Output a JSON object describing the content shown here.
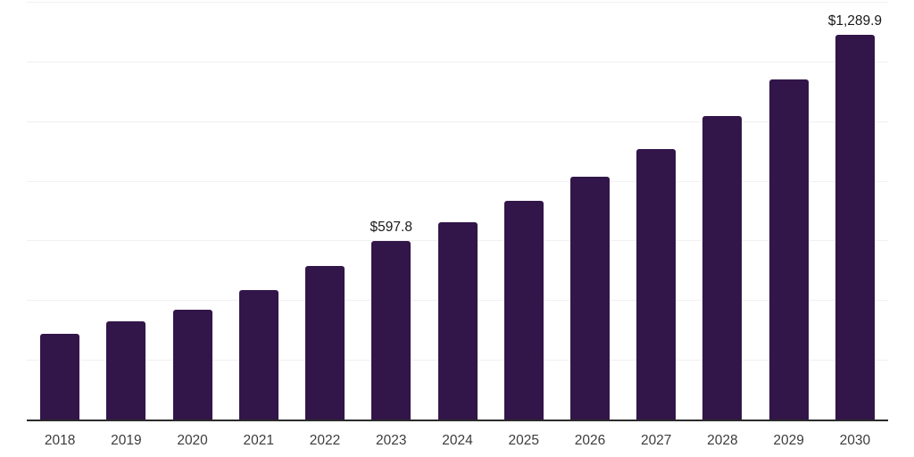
{
  "chart_data": {
    "type": "bar",
    "title": "",
    "xlabel": "",
    "ylabel": "",
    "categories": [
      "2018",
      "2019",
      "2020",
      "2021",
      "2022",
      "2023",
      "2024",
      "2025",
      "2026",
      "2027",
      "2028",
      "2029",
      "2030"
    ],
    "values": [
      287.4,
      329.3,
      368.9,
      435.2,
      513.6,
      597.8,
      661.8,
      731.9,
      813.8,
      907.2,
      1016.4,
      1139.5,
      1289.9
    ],
    "data_labels": [
      "",
      "",
      "",
      "",
      "",
      "$597.8",
      "",
      "",
      "",
      "",
      "",
      "",
      "$1,289.9"
    ],
    "ylim": [
      0,
      1400
    ],
    "grid_interval": 200,
    "grid": true,
    "legend": false,
    "colors": {
      "bar": "#321549",
      "axis_line": "#2b2b2b",
      "gridline": "#f2f0f2",
      "data_label_text": "#1a1a1a",
      "tick_label_text": "#3d3d3d",
      "background": "#ffffff"
    }
  }
}
